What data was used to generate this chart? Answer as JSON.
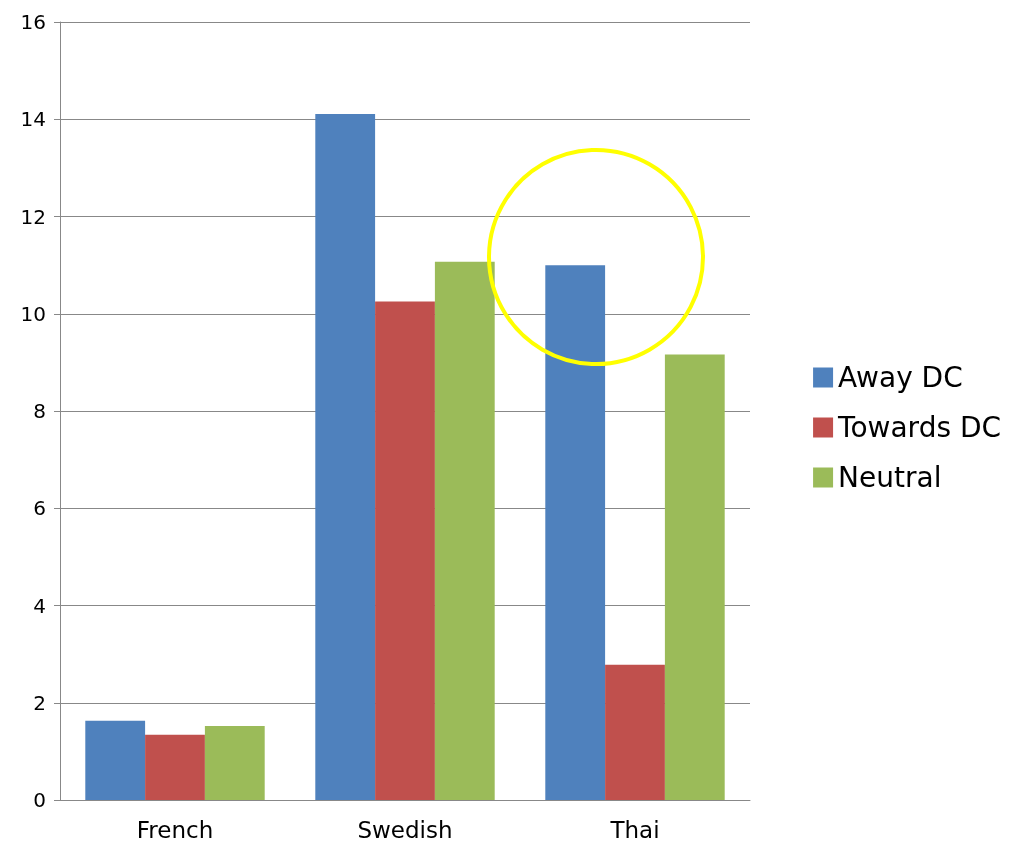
{
  "chart_data": {
    "type": "bar",
    "categories": [
      "French",
      "Swedish",
      "Thai"
    ],
    "series": [
      {
        "name": "Away DC",
        "color": "#4f81bd",
        "values": [
          1.63,
          14.11,
          11.0
        ]
      },
      {
        "name": "Towards DC",
        "color": "#c0504d",
        "values": [
          1.34,
          10.25,
          2.78
        ]
      },
      {
        "name": "Neutral",
        "color": "#9bbb59",
        "values": [
          1.52,
          11.07,
          9.16
        ]
      }
    ],
    "ylim": [
      0,
      16
    ],
    "yticks": [
      0,
      2,
      4,
      6,
      8,
      10,
      12,
      14,
      16
    ],
    "grid": "y",
    "legend": "right"
  }
}
